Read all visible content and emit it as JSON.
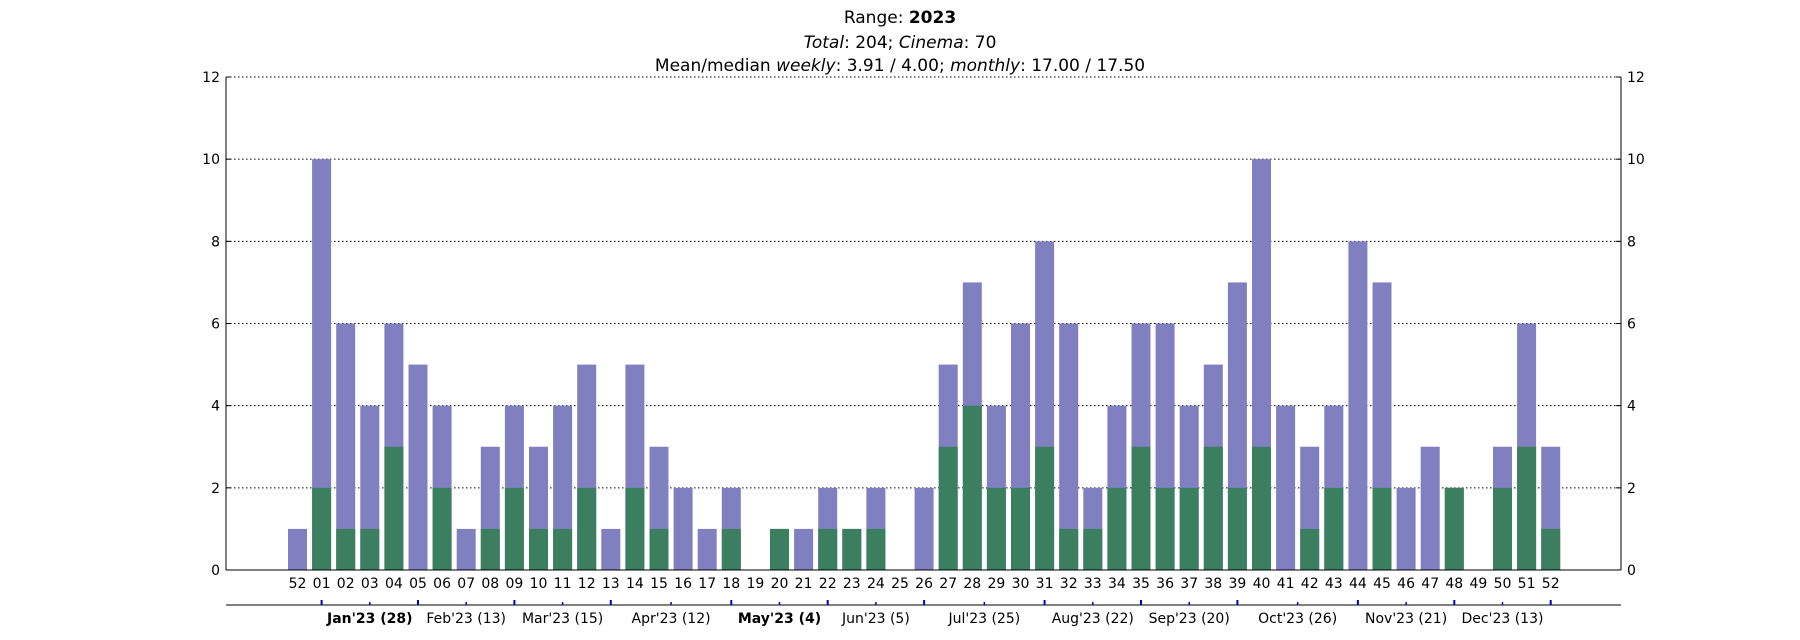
{
  "chart_data": {
    "type": "bar",
    "title_line1": {
      "prefix": "Range: ",
      "value": "2023"
    },
    "title_line2": {
      "total_label": "Total",
      "total_value": "204",
      "cinema_label": "Cinema",
      "cinema_value": "70"
    },
    "title_line3": {
      "prefix": "Mean/median ",
      "weekly_label": "weekly",
      "weekly_value": "3.91 / 4.00",
      "monthly_label": "monthly",
      "monthly_value": "17.00 / 17.50"
    },
    "ylim": [
      0,
      12
    ],
    "yticks": [
      0,
      2,
      4,
      6,
      8,
      10,
      12
    ],
    "grid": true,
    "categories": [
      "52",
      "01",
      "02",
      "03",
      "04",
      "05",
      "06",
      "07",
      "08",
      "09",
      "10",
      "11",
      "12",
      "13",
      "14",
      "15",
      "16",
      "17",
      "18",
      "19",
      "20",
      "21",
      "22",
      "23",
      "24",
      "25",
      "26",
      "27",
      "28",
      "29",
      "30",
      "31",
      "32",
      "33",
      "34",
      "35",
      "36",
      "37",
      "38",
      "39",
      "40",
      "41",
      "42",
      "43",
      "44",
      "45",
      "46",
      "47",
      "48",
      "49",
      "50",
      "51",
      "52"
    ],
    "series": [
      {
        "values": [
          1,
          10,
          6,
          4,
          6,
          5,
          4,
          1,
          3,
          4,
          3,
          4,
          5,
          1,
          5,
          3,
          2,
          1,
          2,
          0,
          1,
          1,
          2,
          1,
          2,
          0,
          2,
          5,
          7,
          4,
          6,
          8,
          6,
          2,
          4,
          6,
          6,
          4,
          5,
          7,
          10,
          4,
          3,
          4,
          8,
          7,
          2,
          3,
          2,
          0,
          3,
          6,
          3
        ],
        "color": "#8080c0"
      },
      {
        "values": [
          0,
          2,
          1,
          1,
          3,
          0,
          2,
          0,
          1,
          2,
          1,
          1,
          2,
          0,
          2,
          1,
          0,
          0,
          1,
          0,
          1,
          0,
          1,
          1,
          1,
          0,
          0,
          3,
          4,
          2,
          2,
          3,
          1,
          1,
          2,
          3,
          2,
          2,
          3,
          2,
          3,
          0,
          1,
          2,
          0,
          2,
          0,
          0,
          2,
          0,
          2,
          3,
          1
        ],
        "color": "#3c7f60"
      }
    ],
    "months": [
      {
        "label": "Jan'23 (28)",
        "bold": true,
        "start_week": 1,
        "end_week": 5
      },
      {
        "label": "Feb'23 (13)",
        "bold": false,
        "start_week": 5,
        "end_week": 9
      },
      {
        "label": "Mar'23 (15)",
        "bold": false,
        "start_week": 9,
        "end_week": 13
      },
      {
        "label": "Apr'23 (12)",
        "bold": false,
        "start_week": 13,
        "end_week": 18
      },
      {
        "label": "May'23 (4)",
        "bold": true,
        "start_week": 18,
        "end_week": 22
      },
      {
        "label": "Jun'23 (5)",
        "bold": false,
        "start_week": 22,
        "end_week": 26
      },
      {
        "label": "Jul'23 (25)",
        "bold": false,
        "start_week": 26,
        "end_week": 31
      },
      {
        "label": "Aug'23 (22)",
        "bold": false,
        "start_week": 31,
        "end_week": 35
      },
      {
        "label": "Sep'23 (20)",
        "bold": false,
        "start_week": 35,
        "end_week": 39
      },
      {
        "label": "Oct'23 (26)",
        "bold": false,
        "start_week": 39,
        "end_week": 44
      },
      {
        "label": "Nov'23 (21)",
        "bold": false,
        "start_week": 44,
        "end_week": 48
      },
      {
        "label": "Dec'23 (13)",
        "bold": false,
        "start_week": 48,
        "end_week": 52
      }
    ],
    "axis_color": "#000000",
    "month_tick_color": "#0000cc"
  }
}
